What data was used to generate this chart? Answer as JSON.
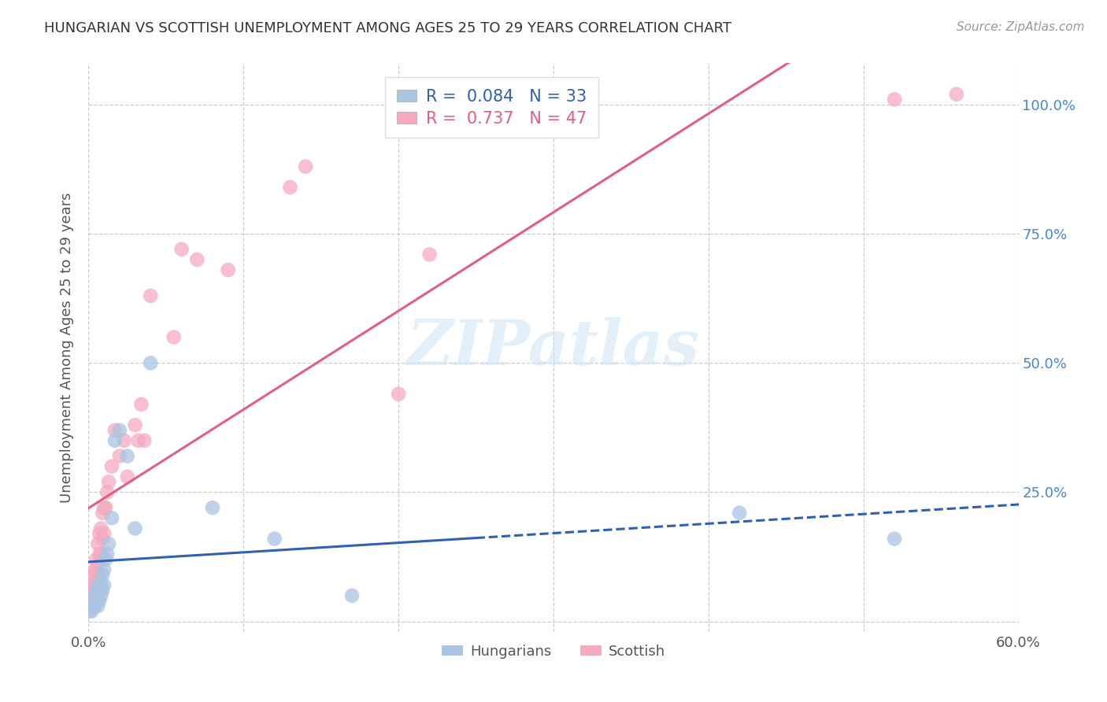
{
  "title": "HUNGARIAN VS SCOTTISH UNEMPLOYMENT AMONG AGES 25 TO 29 YEARS CORRELATION CHART",
  "source": "Source: ZipAtlas.com",
  "ylabel": "Unemployment Among Ages 25 to 29 years",
  "xlim": [
    0.0,
    0.6
  ],
  "ylim": [
    -0.02,
    1.08
  ],
  "x_ticks": [
    0.0,
    0.1,
    0.2,
    0.3,
    0.4,
    0.5,
    0.6
  ],
  "x_tick_labels": [
    "0.0%",
    "",
    "",
    "",
    "",
    "",
    "60.0%"
  ],
  "y_ticks": [
    0.0,
    0.25,
    0.5,
    0.75,
    1.0
  ],
  "y_tick_labels_right": [
    "",
    "25.0%",
    "50.0%",
    "75.0%",
    "100.0%"
  ],
  "hungarian_R": 0.084,
  "hungarian_N": 33,
  "scottish_R": 0.737,
  "scottish_N": 47,
  "hungarian_color": "#aac4e2",
  "scottish_color": "#f5aabf",
  "hungarian_line_color": "#3060b0",
  "scottish_line_color": "#e06080",
  "watermark": "ZIPatlas",
  "hun_x": [
    0.001,
    0.002,
    0.003,
    0.003,
    0.004,
    0.004,
    0.005,
    0.005,
    0.006,
    0.006,
    0.006,
    0.007,
    0.007,
    0.008,
    0.008,
    0.009,
    0.009,
    0.01,
    0.01,
    0.011,
    0.012,
    0.013,
    0.015,
    0.017,
    0.02,
    0.025,
    0.03,
    0.04,
    0.08,
    0.12,
    0.17,
    0.42,
    0.52
  ],
  "hun_y": [
    0.02,
    0.02,
    0.03,
    0.04,
    0.03,
    0.05,
    0.04,
    0.06,
    0.03,
    0.05,
    0.07,
    0.04,
    0.06,
    0.05,
    0.07,
    0.06,
    0.09,
    0.07,
    0.1,
    0.12,
    0.13,
    0.15,
    0.2,
    0.35,
    0.37,
    0.32,
    0.18,
    0.5,
    0.22,
    0.16,
    0.05,
    0.21,
    0.16
  ],
  "sco_x": [
    0.0,
    0.001,
    0.002,
    0.002,
    0.003,
    0.003,
    0.004,
    0.004,
    0.005,
    0.005,
    0.005,
    0.006,
    0.006,
    0.006,
    0.007,
    0.007,
    0.007,
    0.008,
    0.008,
    0.009,
    0.009,
    0.01,
    0.01,
    0.011,
    0.012,
    0.013,
    0.015,
    0.017,
    0.02,
    0.023,
    0.025,
    0.03,
    0.032,
    0.034,
    0.036,
    0.04,
    0.055,
    0.06,
    0.07,
    0.09,
    0.13,
    0.14,
    0.2,
    0.22,
    0.31,
    0.52,
    0.56
  ],
  "sco_y": [
    0.03,
    0.04,
    0.05,
    0.07,
    0.06,
    0.09,
    0.07,
    0.1,
    0.06,
    0.09,
    0.12,
    0.08,
    0.11,
    0.15,
    0.09,
    0.13,
    0.17,
    0.13,
    0.18,
    0.16,
    0.21,
    0.17,
    0.22,
    0.22,
    0.25,
    0.27,
    0.3,
    0.37,
    0.32,
    0.35,
    0.28,
    0.38,
    0.35,
    0.42,
    0.35,
    0.63,
    0.55,
    0.72,
    0.7,
    0.68,
    0.84,
    0.88,
    0.44,
    0.71,
    1.01,
    1.01,
    1.02
  ]
}
